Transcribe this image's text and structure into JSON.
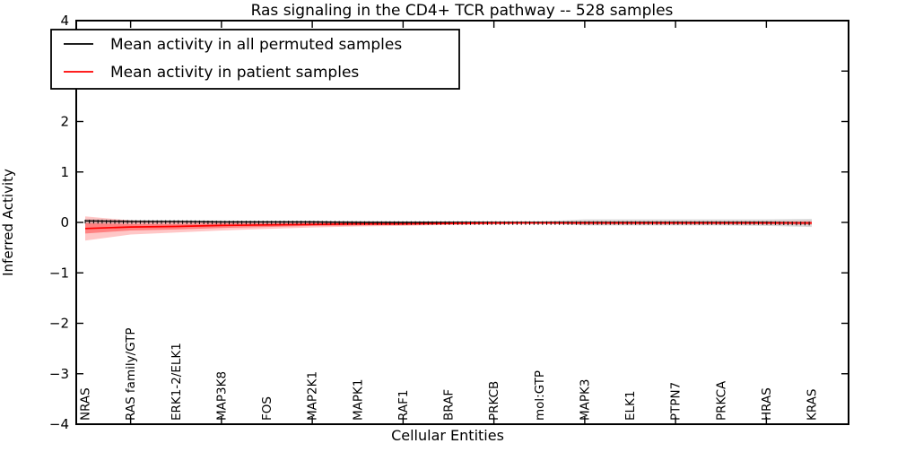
{
  "chart_data": {
    "type": "line",
    "title": "Ras signaling in the CD4+ TCR pathway -- 528 samples",
    "xlabel": "Cellular Entities",
    "ylabel": "Inferred Activity",
    "ylim": [
      -4,
      4
    ],
    "yticks": [
      -4,
      -3,
      -2,
      -1,
      0,
      1,
      2,
      3,
      4
    ],
    "xtick_major_indices": [
      1,
      3,
      5,
      7,
      9,
      11,
      13,
      15
    ],
    "grid": false,
    "tick_direction": "in",
    "legend_position": "upper left",
    "categories": [
      "NRAS",
      "RAS family/GTP",
      "ERK1-2/ELK1",
      "MAP3K8",
      "FOS",
      "MAP2K1",
      "MAPK1",
      "RAF1",
      "BRAF",
      "PRKCB",
      "mol:GTP",
      "MAPK3",
      "ELK1",
      "PTPN7",
      "PRKCA",
      "HRAS",
      "KRAS"
    ],
    "series": [
      {
        "name": "Mean activity in all permuted samples",
        "color": "#000000",
        "band_color": "rgba(0,0,0,0.15)",
        "marker": "small vertical tick marks along line",
        "values": [
          0.03,
          0.02,
          0.02,
          0.01,
          0.01,
          0.01,
          0.0,
          0.0,
          0.0,
          0.0,
          0.0,
          0.0,
          0.0,
          0.0,
          0.0,
          0.0,
          -0.01
        ],
        "band_upper": [
          0.07,
          0.05,
          0.04,
          0.04,
          0.03,
          0.03,
          0.03,
          0.02,
          0.02,
          0.02,
          0.02,
          0.06,
          0.06,
          0.06,
          0.06,
          0.06,
          0.07
        ],
        "band_lower": [
          -0.03,
          -0.02,
          -0.02,
          -0.02,
          -0.02,
          -0.02,
          -0.02,
          -0.02,
          -0.02,
          -0.02,
          -0.02,
          -0.06,
          -0.06,
          -0.06,
          -0.06,
          -0.07,
          -0.09
        ]
      },
      {
        "name": "Mean activity in patient samples",
        "color": "#ff0000",
        "band_color": "rgba(255,0,0,0.22)",
        "inner_band_color": "rgba(255,0,0,0.35)",
        "values": [
          -0.12,
          -0.09,
          -0.08,
          -0.06,
          -0.05,
          -0.04,
          -0.03,
          -0.03,
          -0.02,
          -0.01,
          -0.01,
          -0.01,
          -0.01,
          -0.01,
          -0.01,
          -0.01,
          -0.01
        ],
        "band_upper": [
          0.12,
          0.04,
          0.02,
          0.02,
          0.01,
          0.01,
          0.01,
          0.01,
          0.01,
          0.01,
          0.0,
          0.02,
          0.02,
          0.02,
          0.02,
          0.02,
          0.03
        ],
        "band_lower": [
          -0.36,
          -0.24,
          -0.2,
          -0.16,
          -0.13,
          -0.1,
          -0.08,
          -0.07,
          -0.05,
          -0.04,
          -0.02,
          -0.04,
          -0.04,
          -0.04,
          -0.04,
          -0.04,
          -0.05
        ],
        "inner_band_upper": [
          -0.02,
          -0.03,
          -0.03,
          -0.02,
          -0.02,
          -0.01,
          -0.01,
          -0.01,
          0.0,
          0.0,
          0.0,
          0.0,
          0.0,
          0.0,
          0.0,
          0.0,
          0.0
        ],
        "inner_band_lower": [
          -0.22,
          -0.16,
          -0.14,
          -0.11,
          -0.09,
          -0.07,
          -0.06,
          -0.05,
          -0.04,
          -0.03,
          -0.02,
          -0.02,
          -0.02,
          -0.02,
          -0.02,
          -0.02,
          -0.03
        ]
      }
    ]
  }
}
